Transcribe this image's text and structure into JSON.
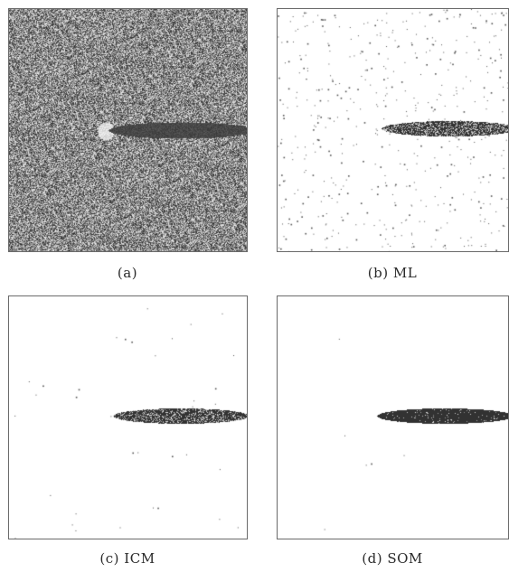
{
  "figure": {
    "panels": [
      {
        "id": "a",
        "caption": "(a)"
      },
      {
        "id": "b",
        "caption": "(b) ML"
      },
      {
        "id": "c",
        "caption": "(c) ICM"
      },
      {
        "id": "d",
        "caption": "(d) SOM"
      }
    ]
  },
  "colors": {
    "border": "#6a6a6a",
    "target": "#3a3a3a",
    "background": "#ffffff"
  }
}
